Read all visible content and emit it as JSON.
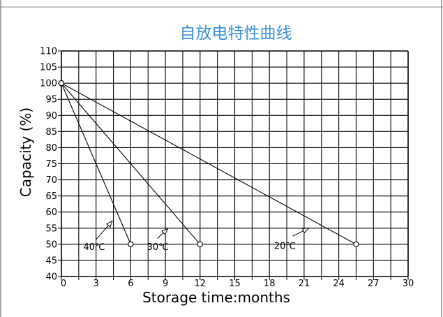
{
  "chart_data": {
    "type": "line",
    "title": "自放电特性曲线",
    "xlabel": "Storage time:months",
    "ylabel": "Capacity (%)",
    "xlim": [
      0,
      30
    ],
    "ylim": [
      40,
      110
    ],
    "xticks": [
      "0",
      "3",
      "6",
      "9",
      "12",
      "15",
      "18",
      "21",
      "24",
      "27",
      "30"
    ],
    "yticks": [
      "40",
      "45",
      "50",
      "55",
      "60",
      "65",
      "70",
      "75",
      "80",
      "85",
      "90",
      "95",
      "100",
      "105",
      "110"
    ],
    "grid": true,
    "series": [
      {
        "name": "40℃",
        "x": [
          0,
          6
        ],
        "y": [
          100,
          50
        ]
      },
      {
        "name": "30℃",
        "x": [
          0,
          12
        ],
        "y": [
          100,
          50
        ]
      },
      {
        "name": "20℃",
        "x": [
          0,
          25.5
        ],
        "y": [
          100,
          50
        ]
      }
    ],
    "colors": {
      "title": "#3a8fd8",
      "lines": "#000000",
      "grid": "#000000"
    }
  }
}
